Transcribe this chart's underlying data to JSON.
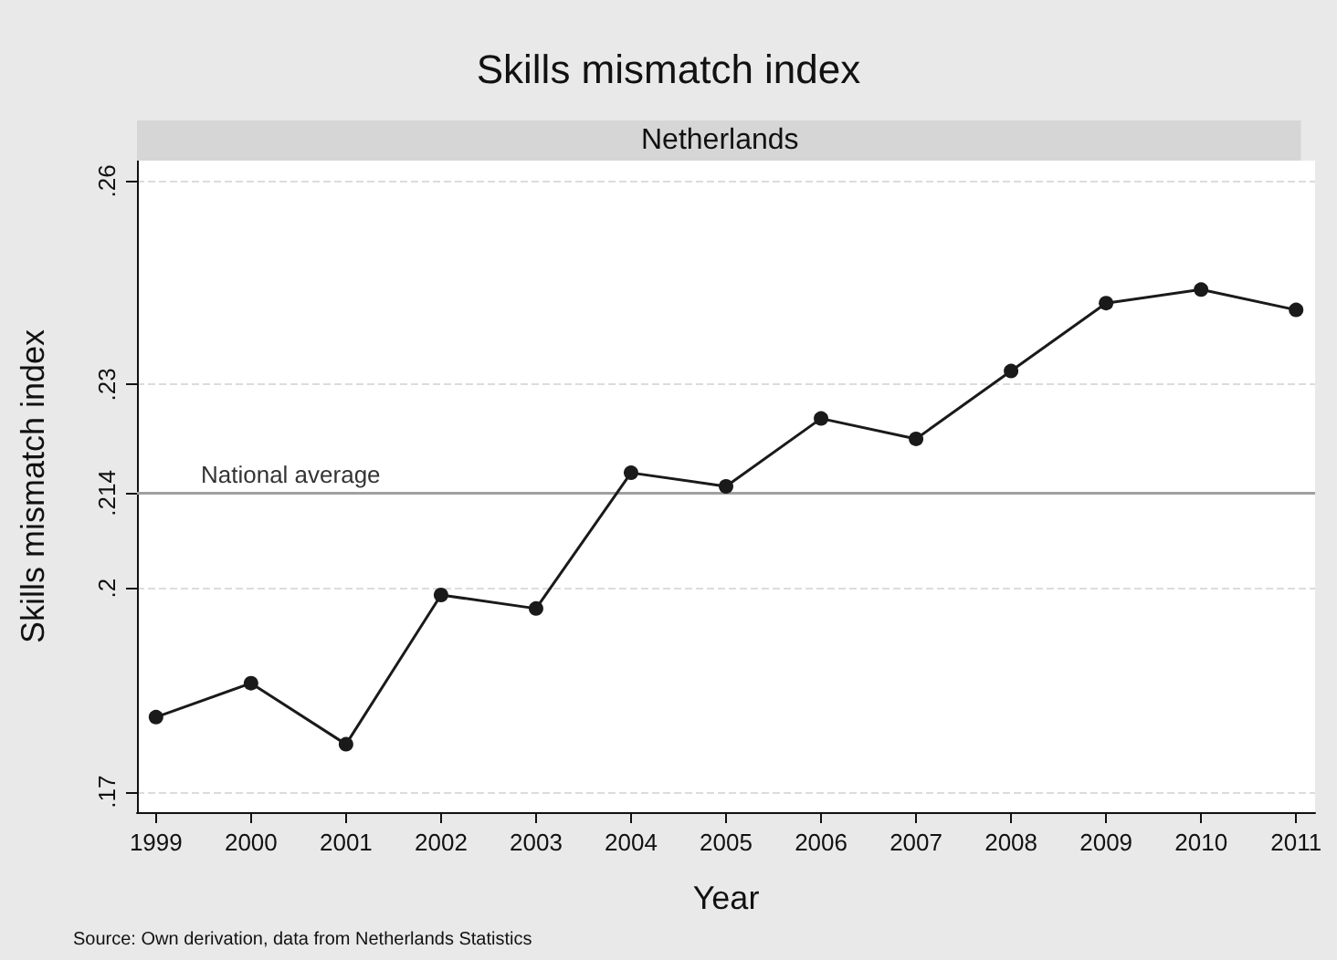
{
  "chart_data": {
    "type": "line",
    "title": "Skills mismatch index",
    "subtitle": "Netherlands",
    "xlabel": "Year",
    "ylabel": "Skills mismatch index",
    "x": [
      1999,
      2000,
      2001,
      2002,
      2003,
      2004,
      2005,
      2006,
      2007,
      2008,
      2009,
      2010,
      2011
    ],
    "series": [
      {
        "color": "#1a1a1a",
        "values": [
          0.181,
          0.186,
          0.177,
          0.199,
          0.197,
          0.217,
          0.215,
          0.225,
          0.222,
          0.232,
          0.242,
          0.244,
          0.241
        ]
      }
    ],
    "xlim": [
      1998.8,
      2011.2
    ],
    "xticks": [
      1999,
      2000,
      2001,
      2002,
      2003,
      2004,
      2005,
      2006,
      2007,
      2008,
      2009,
      2010,
      2011
    ],
    "ylim": [
      0.167,
      0.263
    ],
    "yticks": [
      {
        "value": 0.17,
        "label": ".17"
      },
      {
        "value": 0.2,
        "label": ".2"
      },
      {
        "value": 0.214,
        "label": ".214"
      },
      {
        "value": 0.23,
        "label": ".23"
      },
      {
        "value": 0.26,
        "label": ".26"
      }
    ],
    "ref_lines": [
      {
        "axis": "y",
        "value": 0.214,
        "label": "National average",
        "color": "#a0a0a0"
      }
    ],
    "annotations": [
      "Source: Own derivation, data from Netherlands Statistics"
    ],
    "grid": "y",
    "marker": "circle",
    "line_style": "solid"
  }
}
